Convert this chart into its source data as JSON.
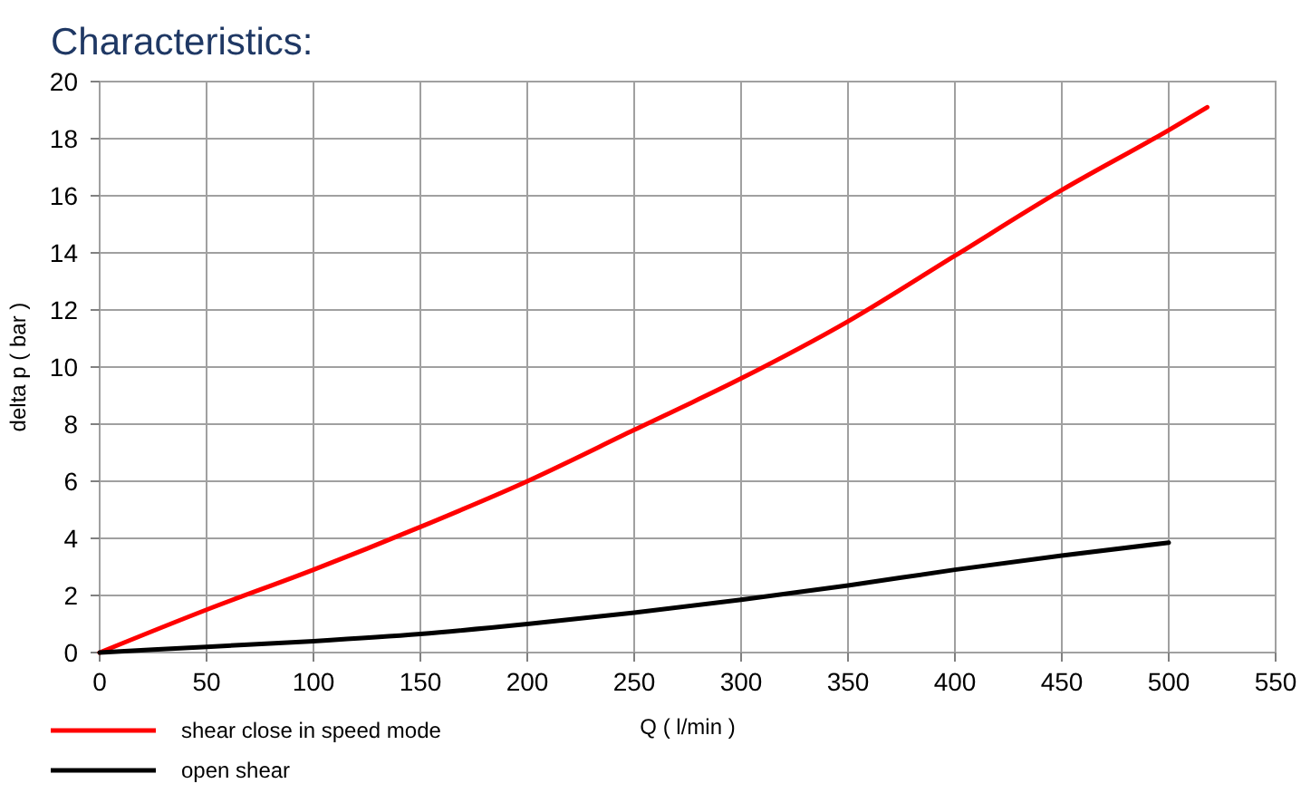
{
  "chart_data": {
    "type": "line",
    "title": "Characteristics:",
    "xlabel": "Q ( l/min )",
    "ylabel": "delta p ( bar )",
    "xlim": [
      0,
      550
    ],
    "xticks": [
      0,
      50,
      100,
      150,
      200,
      250,
      300,
      350,
      400,
      450,
      500,
      550
    ],
    "ylim": [
      0,
      20
    ],
    "yticks": [
      0,
      2,
      4,
      6,
      8,
      10,
      12,
      14,
      16,
      18,
      20
    ],
    "grid": true,
    "legend": "bottom left",
    "marker": "none",
    "line_style": "solid",
    "series": [
      {
        "name": "shear close in speed mode",
        "color": "#ff0000",
        "x": [
          0,
          50,
          100,
          150,
          200,
          250,
          300,
          350,
          400,
          450,
          500,
          518
        ],
        "values": [
          0,
          1.5,
          2.9,
          4.4,
          6.0,
          7.8,
          9.6,
          11.6,
          13.9,
          16.2,
          18.3,
          19.1
        ]
      },
      {
        "name": "open shear",
        "color": "#000000",
        "x": [
          0,
          50,
          100,
          150,
          200,
          250,
          300,
          350,
          400,
          450,
          500
        ],
        "values": [
          0,
          0.2,
          0.4,
          0.65,
          1.0,
          1.4,
          1.85,
          2.35,
          2.9,
          3.4,
          3.85
        ]
      }
    ]
  }
}
